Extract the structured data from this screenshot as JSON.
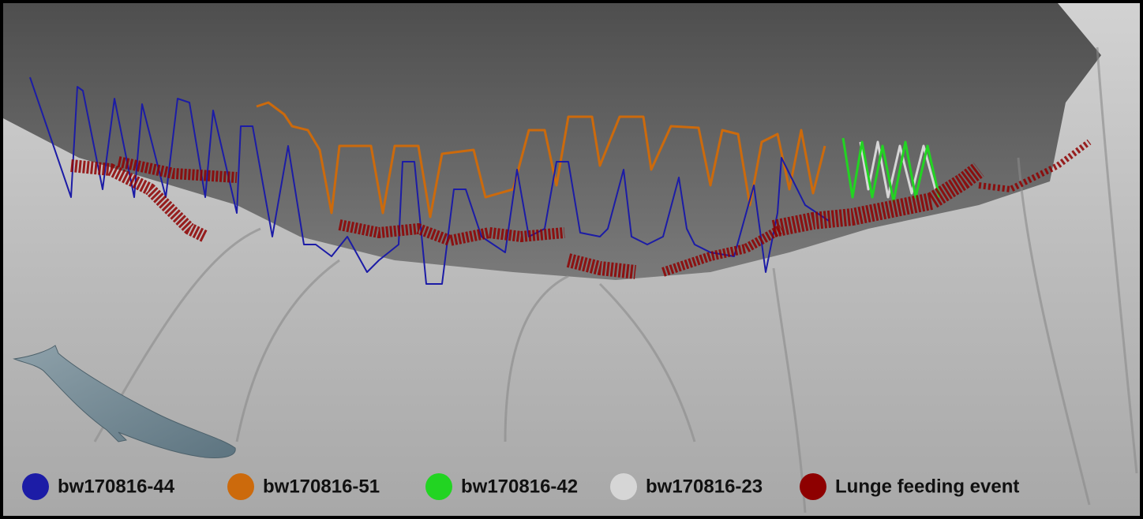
{
  "legend": {
    "items": [
      {
        "label": "bw170816-44",
        "color": "#1c1ca6"
      },
      {
        "label": "bw170816-51",
        "color": "#cc6a0c"
      },
      {
        "label": "bw170816-42",
        "color": "#22d422"
      },
      {
        "label": "bw170816-23",
        "color": "#d6d6d6"
      },
      {
        "label": "Lunge feeding event",
        "color": "#8e0000"
      }
    ]
  }
}
